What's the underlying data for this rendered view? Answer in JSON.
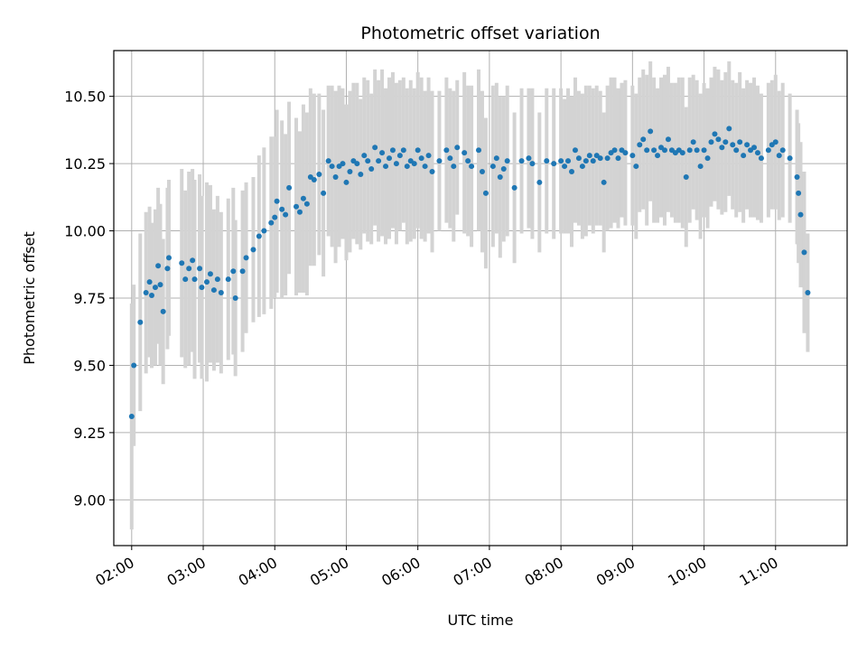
{
  "chart_data": {
    "type": "scatter",
    "title": "Photometric offset variation",
    "xlabel": "UTC time",
    "ylabel": "Photometric offset",
    "x_unit": "hours UTC",
    "xlim": [
      1.75,
      12.0
    ],
    "ylim": [
      8.83,
      10.67
    ],
    "xticks": [
      2,
      3,
      4,
      5,
      6,
      7,
      8,
      9,
      10,
      11
    ],
    "xtick_labels": [
      "02:00",
      "03:00",
      "04:00",
      "05:00",
      "06:00",
      "07:00",
      "08:00",
      "09:00",
      "10:00",
      "11:00"
    ],
    "yticks": [
      9.0,
      9.25,
      9.5,
      9.75,
      10.0,
      10.25,
      10.5
    ],
    "ytick_labels": [
      "9.00",
      "9.25",
      "9.50",
      "9.75",
      "10.00",
      "10.25",
      "10.50"
    ],
    "grid": true,
    "errorbar_color": "#d3d3d3",
    "point_color": "#1f77b4",
    "points": [
      [
        2.0,
        9.31,
        0.42
      ],
      [
        2.03,
        9.5,
        0.3
      ],
      [
        2.12,
        9.66,
        0.33
      ],
      [
        2.2,
        9.77,
        0.3
      ],
      [
        2.25,
        9.81,
        0.28
      ],
      [
        2.28,
        9.76,
        0.27
      ],
      [
        2.33,
        9.79,
        0.29
      ],
      [
        2.37,
        9.87,
        0.29
      ],
      [
        2.4,
        9.8,
        0.3
      ],
      [
        2.44,
        9.7,
        0.27
      ],
      [
        2.5,
        9.86,
        0.3
      ],
      [
        2.52,
        9.9,
        0.29
      ],
      [
        2.7,
        9.88,
        0.35
      ],
      [
        2.75,
        9.82,
        0.33
      ],
      [
        2.8,
        9.86,
        0.36
      ],
      [
        2.85,
        9.89,
        0.34
      ],
      [
        2.88,
        9.82,
        0.37
      ],
      [
        2.95,
        9.86,
        0.35
      ],
      [
        2.98,
        9.79,
        0.34
      ],
      [
        3.05,
        9.81,
        0.37
      ],
      [
        3.1,
        9.84,
        0.33
      ],
      [
        3.15,
        9.78,
        0.3
      ],
      [
        3.2,
        9.82,
        0.31
      ],
      [
        3.25,
        9.77,
        0.3
      ],
      [
        3.35,
        9.82,
        0.3
      ],
      [
        3.42,
        9.85,
        0.31
      ],
      [
        3.45,
        9.75,
        0.29
      ],
      [
        3.55,
        9.85,
        0.3
      ],
      [
        3.6,
        9.9,
        0.28
      ],
      [
        3.7,
        9.93,
        0.27
      ],
      [
        3.78,
        9.98,
        0.3
      ],
      [
        3.85,
        10.0,
        0.31
      ],
      [
        3.95,
        10.03,
        0.32
      ],
      [
        4.0,
        10.05,
        0.3
      ],
      [
        4.03,
        10.11,
        0.34
      ],
      [
        4.1,
        10.08,
        0.33
      ],
      [
        4.15,
        10.06,
        0.3
      ],
      [
        4.2,
        10.16,
        0.32
      ],
      [
        4.3,
        10.09,
        0.33
      ],
      [
        4.35,
        10.07,
        0.3
      ],
      [
        4.4,
        10.12,
        0.35
      ],
      [
        4.45,
        10.1,
        0.34
      ],
      [
        4.5,
        10.2,
        0.33
      ],
      [
        4.55,
        10.19,
        0.32
      ],
      [
        4.62,
        10.21,
        0.3
      ],
      [
        4.68,
        10.14,
        0.31
      ],
      [
        4.75,
        10.26,
        0.28
      ],
      [
        4.8,
        10.24,
        0.3
      ],
      [
        4.85,
        10.2,
        0.32
      ],
      [
        4.9,
        10.24,
        0.3
      ],
      [
        4.95,
        10.25,
        0.28
      ],
      [
        5.0,
        10.18,
        0.29
      ],
      [
        5.05,
        10.22,
        0.3
      ],
      [
        5.1,
        10.26,
        0.29
      ],
      [
        5.15,
        10.25,
        0.3
      ],
      [
        5.2,
        10.21,
        0.28
      ],
      [
        5.25,
        10.28,
        0.29
      ],
      [
        5.3,
        10.26,
        0.3
      ],
      [
        5.35,
        10.23,
        0.28
      ],
      [
        5.4,
        10.31,
        0.29
      ],
      [
        5.45,
        10.26,
        0.3
      ],
      [
        5.5,
        10.29,
        0.31
      ],
      [
        5.55,
        10.24,
        0.29
      ],
      [
        5.6,
        10.27,
        0.3
      ],
      [
        5.65,
        10.3,
        0.29
      ],
      [
        5.7,
        10.25,
        0.3
      ],
      [
        5.75,
        10.28,
        0.28
      ],
      [
        5.8,
        10.3,
        0.27
      ],
      [
        5.85,
        10.24,
        0.29
      ],
      [
        5.9,
        10.26,
        0.3
      ],
      [
        5.95,
        10.25,
        0.28
      ],
      [
        6.0,
        10.3,
        0.29
      ],
      [
        6.05,
        10.27,
        0.3
      ],
      [
        6.1,
        10.24,
        0.28
      ],
      [
        6.15,
        10.28,
        0.29
      ],
      [
        6.2,
        10.22,
        0.3
      ],
      [
        6.3,
        10.26,
        0.26
      ],
      [
        6.4,
        10.3,
        0.27
      ],
      [
        6.45,
        10.27,
        0.26
      ],
      [
        6.5,
        10.24,
        0.28
      ],
      [
        6.55,
        10.31,
        0.25
      ],
      [
        6.65,
        10.29,
        0.3
      ],
      [
        6.7,
        10.26,
        0.28
      ],
      [
        6.75,
        10.24,
        0.3
      ],
      [
        6.85,
        10.3,
        0.3
      ],
      [
        6.9,
        10.22,
        0.3
      ],
      [
        6.95,
        10.14,
        0.28
      ],
      [
        7.05,
        10.24,
        0.3
      ],
      [
        7.1,
        10.27,
        0.28
      ],
      [
        7.15,
        10.2,
        0.3
      ],
      [
        7.2,
        10.23,
        0.27
      ],
      [
        7.25,
        10.26,
        0.28
      ],
      [
        7.35,
        10.16,
        0.28
      ],
      [
        7.45,
        10.26,
        0.27
      ],
      [
        7.55,
        10.27,
        0.26
      ],
      [
        7.6,
        10.25,
        0.28
      ],
      [
        7.7,
        10.18,
        0.26
      ],
      [
        7.8,
        10.26,
        0.27
      ],
      [
        7.9,
        10.25,
        0.28
      ],
      [
        8.0,
        10.26,
        0.27
      ],
      [
        8.05,
        10.24,
        0.25
      ],
      [
        8.1,
        10.26,
        0.27
      ],
      [
        8.15,
        10.22,
        0.28
      ],
      [
        8.2,
        10.3,
        0.27
      ],
      [
        8.25,
        10.27,
        0.25
      ],
      [
        8.3,
        10.24,
        0.27
      ],
      [
        8.35,
        10.26,
        0.28
      ],
      [
        8.4,
        10.28,
        0.26
      ],
      [
        8.45,
        10.26,
        0.27
      ],
      [
        8.5,
        10.28,
        0.26
      ],
      [
        8.55,
        10.27,
        0.25
      ],
      [
        8.6,
        10.18,
        0.26
      ],
      [
        8.65,
        10.27,
        0.27
      ],
      [
        8.7,
        10.29,
        0.28
      ],
      [
        8.75,
        10.3,
        0.27
      ],
      [
        8.8,
        10.27,
        0.26
      ],
      [
        8.85,
        10.3,
        0.25
      ],
      [
        8.9,
        10.29,
        0.27
      ],
      [
        9.0,
        10.28,
        0.26
      ],
      [
        9.05,
        10.24,
        0.27
      ],
      [
        9.1,
        10.32,
        0.25
      ],
      [
        9.15,
        10.34,
        0.26
      ],
      [
        9.2,
        10.3,
        0.28
      ],
      [
        9.25,
        10.37,
        0.26
      ],
      [
        9.3,
        10.3,
        0.27
      ],
      [
        9.35,
        10.28,
        0.25
      ],
      [
        9.4,
        10.31,
        0.26
      ],
      [
        9.45,
        10.3,
        0.28
      ],
      [
        9.5,
        10.34,
        0.27
      ],
      [
        9.55,
        10.3,
        0.25
      ],
      [
        9.6,
        10.29,
        0.26
      ],
      [
        9.65,
        10.3,
        0.27
      ],
      [
        9.7,
        10.29,
        0.28
      ],
      [
        9.75,
        10.2,
        0.26
      ],
      [
        9.8,
        10.3,
        0.27
      ],
      [
        9.85,
        10.33,
        0.25
      ],
      [
        9.9,
        10.3,
        0.26
      ],
      [
        9.95,
        10.24,
        0.27
      ],
      [
        10.0,
        10.3,
        0.25
      ],
      [
        10.05,
        10.27,
        0.26
      ],
      [
        10.1,
        10.33,
        0.24
      ],
      [
        10.15,
        10.36,
        0.25
      ],
      [
        10.2,
        10.34,
        0.26
      ],
      [
        10.25,
        10.31,
        0.25
      ],
      [
        10.3,
        10.33,
        0.26
      ],
      [
        10.35,
        10.38,
        0.25
      ],
      [
        10.4,
        10.32,
        0.24
      ],
      [
        10.45,
        10.3,
        0.25
      ],
      [
        10.5,
        10.33,
        0.26
      ],
      [
        10.55,
        10.28,
        0.25
      ],
      [
        10.6,
        10.32,
        0.24
      ],
      [
        10.65,
        10.3,
        0.25
      ],
      [
        10.7,
        10.31,
        0.26
      ],
      [
        10.75,
        10.29,
        0.25
      ],
      [
        10.8,
        10.27,
        0.24
      ],
      [
        10.9,
        10.3,
        0.25
      ],
      [
        10.95,
        10.32,
        0.24
      ],
      [
        11.0,
        10.33,
        0.25
      ],
      [
        11.05,
        10.28,
        0.24
      ],
      [
        11.1,
        10.3,
        0.25
      ],
      [
        11.2,
        10.27,
        0.24
      ],
      [
        11.3,
        10.2,
        0.25
      ],
      [
        11.32,
        10.14,
        0.26
      ],
      [
        11.35,
        10.06,
        0.27
      ],
      [
        11.4,
        9.92,
        0.3
      ],
      [
        11.45,
        9.77,
        0.22
      ]
    ]
  }
}
